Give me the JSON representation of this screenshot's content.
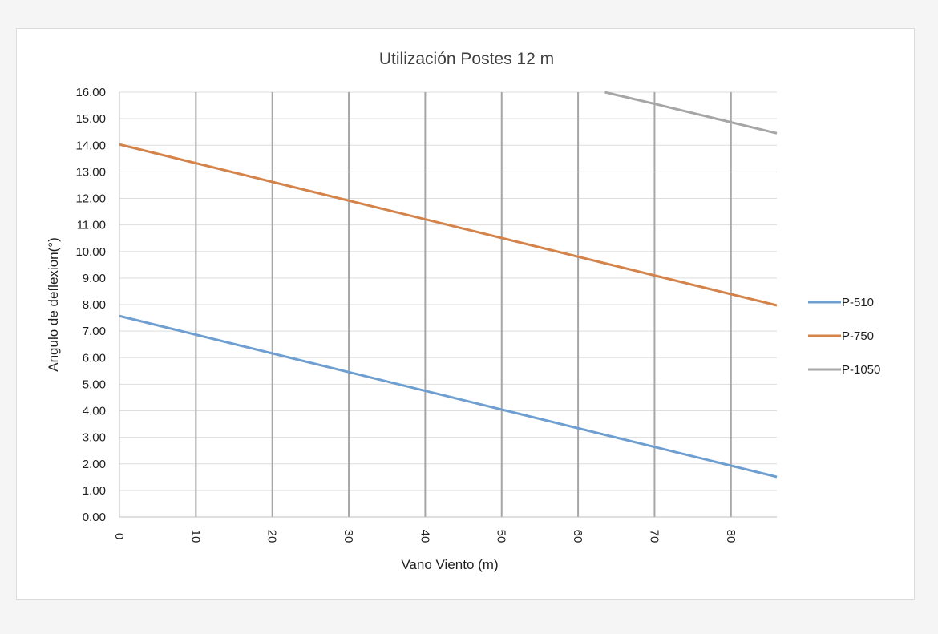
{
  "chart_data": {
    "type": "line",
    "title": "Utilización  Postes 12 m",
    "xlabel": "Vano Viento (m)",
    "ylabel": "Angulo de deflexion(°)",
    "xlim": [
      0,
      86
    ],
    "ylim": [
      0,
      16
    ],
    "x_ticks": [
      "0",
      "10",
      "20",
      "30",
      "40",
      "50",
      "60",
      "70",
      "80"
    ],
    "y_ticks": [
      "0.00",
      "1.00",
      "2.00",
      "3.00",
      "4.00",
      "5.00",
      "6.00",
      "7.00",
      "8.00",
      "9.00",
      "10.00",
      "11.00",
      "12.00",
      "13.00",
      "14.00",
      "15.00",
      "16.00"
    ],
    "grid": "vertical major + horizontal minor",
    "legend": "right",
    "series": [
      {
        "name": "P-510",
        "color": "#6f9fd1",
        "x": [
          0,
          86
        ],
        "y": [
          7.57,
          1.51
        ]
      },
      {
        "name": "P-750",
        "color": "#d4834a",
        "x": [
          0,
          86
        ],
        "y": [
          14.03,
          7.97
        ]
      },
      {
        "name": "P-1050",
        "color": "#a6a6a6",
        "x": [
          63.5,
          70,
          86
        ],
        "y": [
          16.0,
          15.56,
          14.45
        ]
      }
    ]
  }
}
